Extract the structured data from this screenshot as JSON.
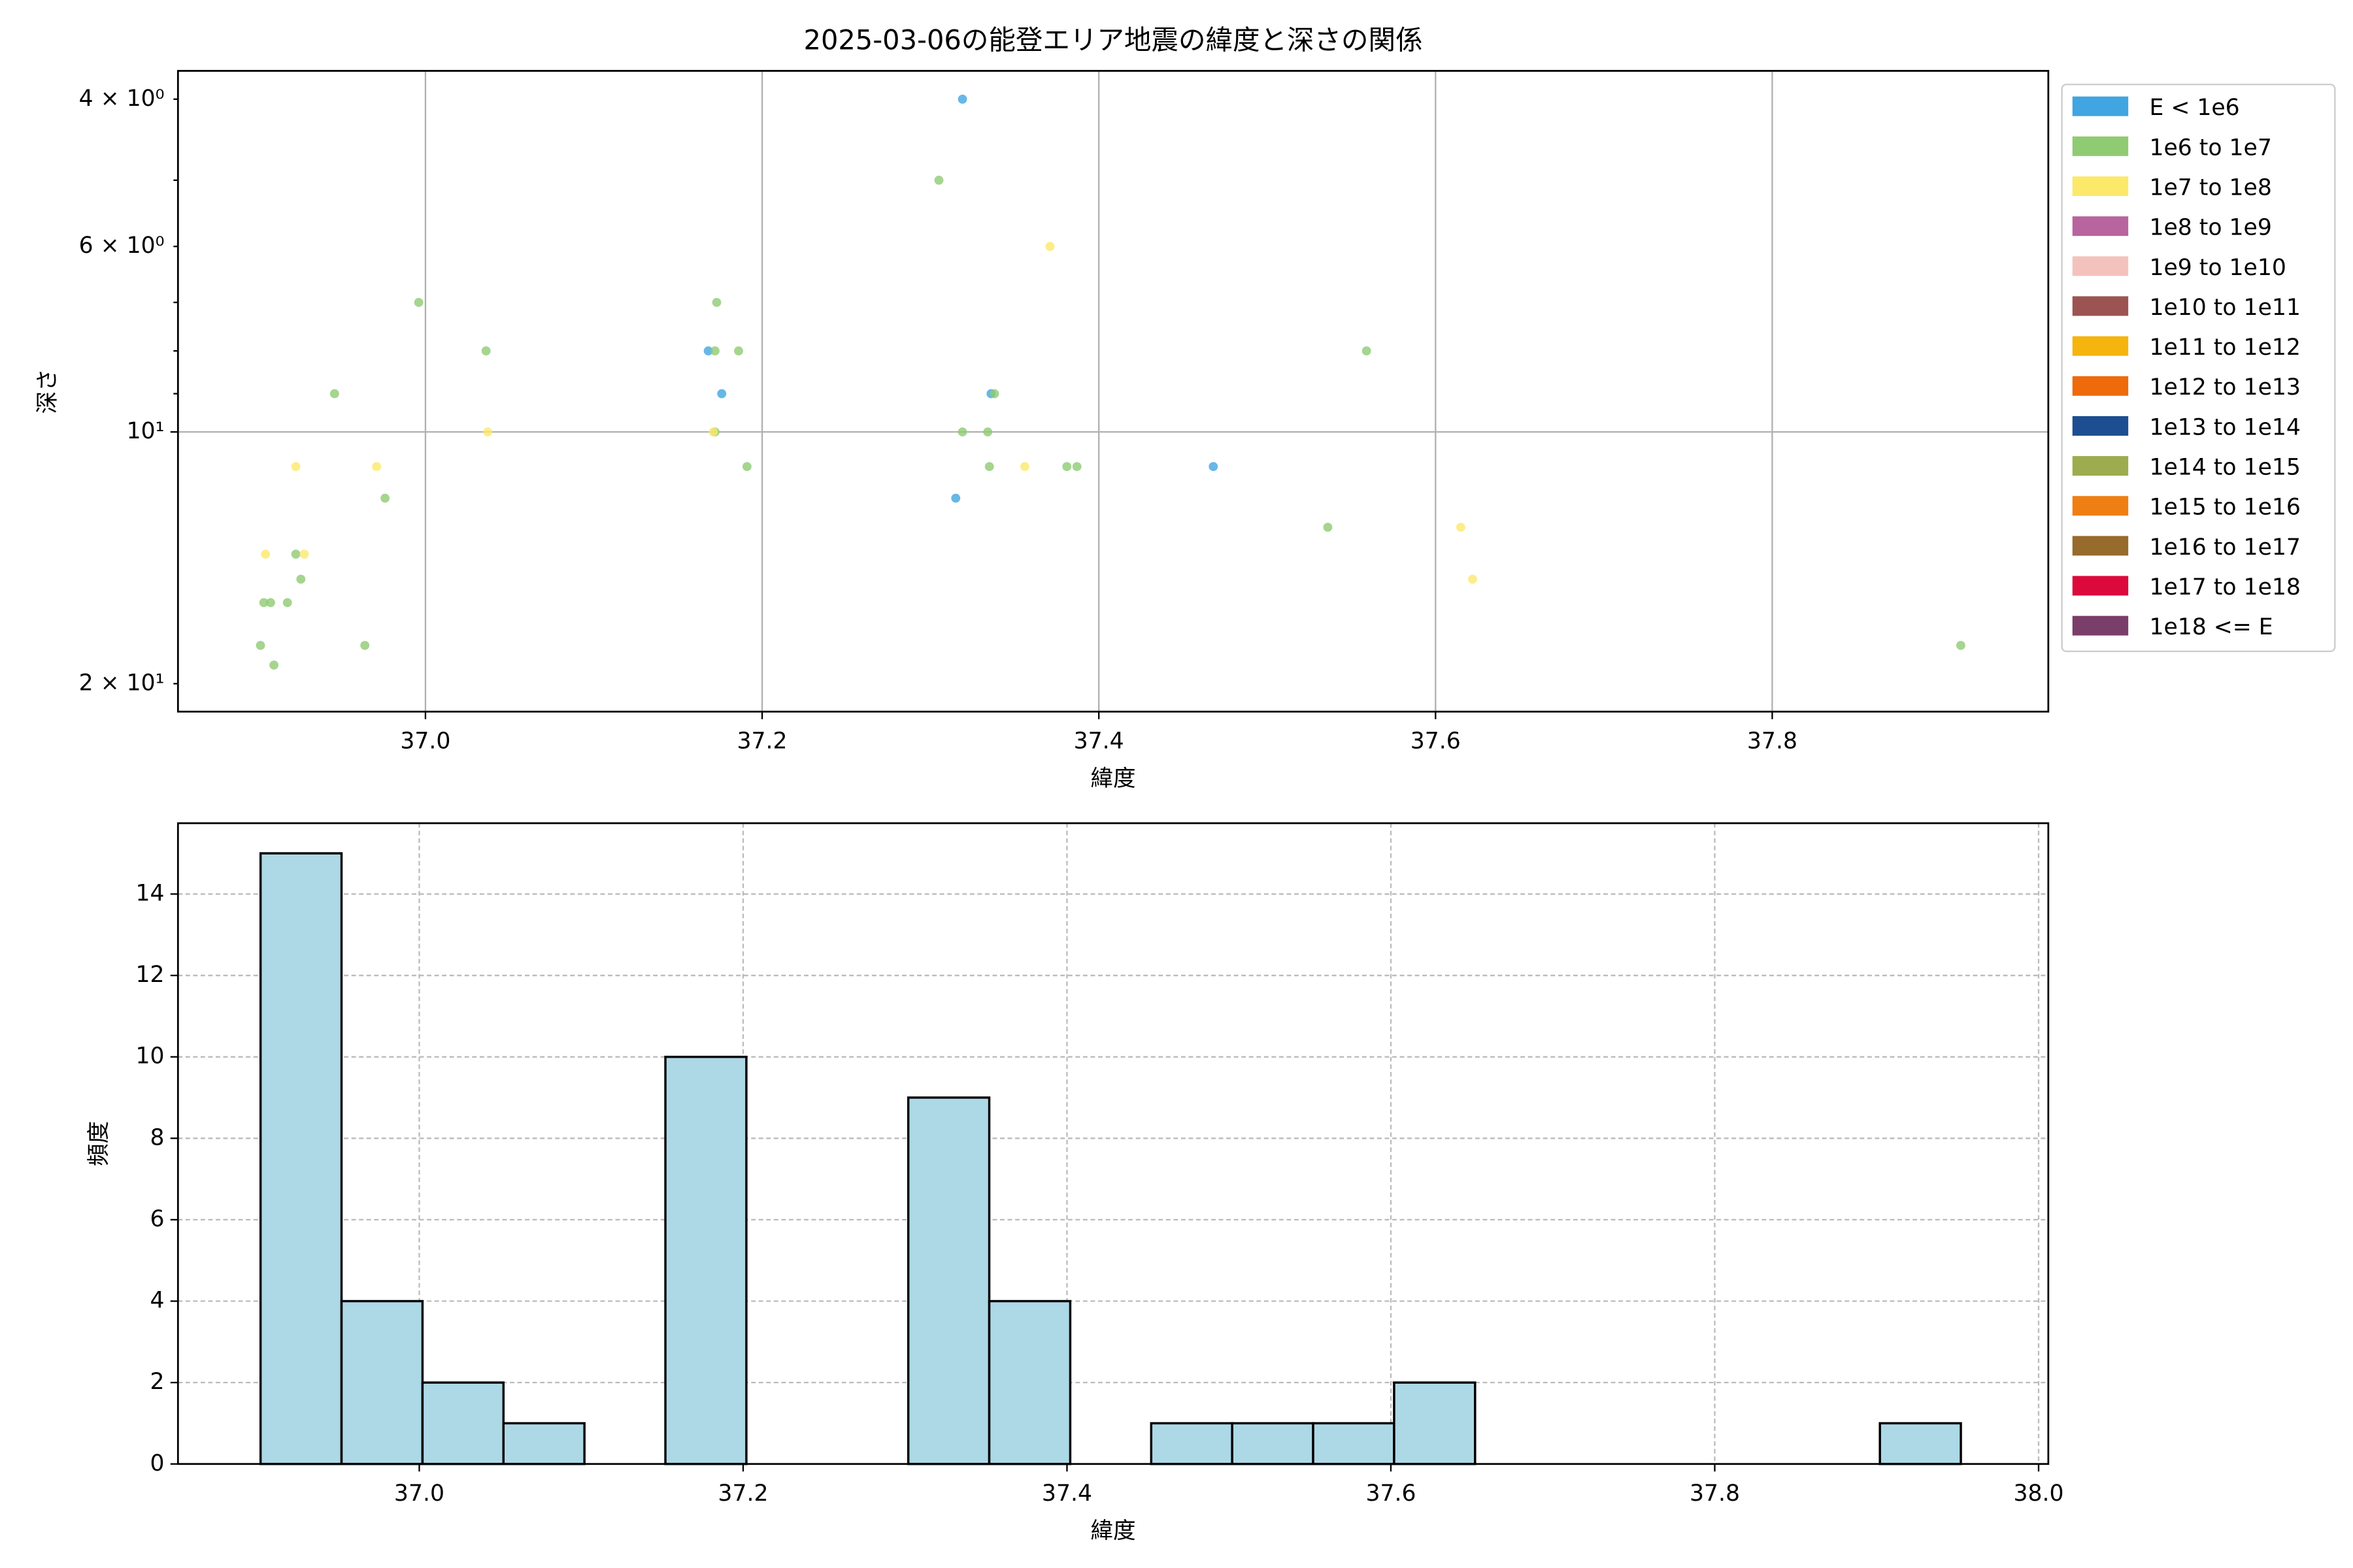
{
  "chart_data": [
    {
      "type": "scatter",
      "title": "2025-03-06の能登エリア地震の緯度と深さの関係",
      "xlabel": "緯度",
      "ylabel": "深さ",
      "xlim": [
        36.853,
        37.964
      ],
      "xticks": [
        {
          "value": 37.0,
          "label": "37.0"
        },
        {
          "value": 37.2,
          "label": "37.2"
        },
        {
          "value": 37.4,
          "label": "37.4"
        },
        {
          "value": 37.6,
          "label": "37.6"
        },
        {
          "value": 37.8,
          "label": "37.8"
        }
      ],
      "ylim": [
        21.6,
        3.7
      ],
      "yscale": "log",
      "yticks": [
        {
          "value": 10,
          "label": "10¹"
        }
      ],
      "yminorticks": [
        {
          "value": 4,
          "label": "4 × 10⁰"
        },
        5,
        {
          "value": 6,
          "label": "6 × 10⁰"
        },
        7,
        8,
        9,
        {
          "value": 20,
          "label": "2 × 10¹"
        }
      ],
      "grid": true,
      "grid_style": "solid",
      "legend": "outside upper right",
      "series": [
        {
          "name": "E < 1e6",
          "color": "#41a5e1",
          "x": [
            37.319,
            37.468,
            37.315,
            37.336,
            37.168,
            37.176
          ],
          "y": [
            4,
            11,
            12,
            9,
            8,
            9
          ]
        },
        {
          "name": "1e6 to 1e7",
          "color": "#8fcb73",
          "x": [
            37.305,
            36.996,
            37.036,
            36.946,
            37.173,
            37.172,
            37.186,
            37.172,
            37.191,
            37.319,
            37.334,
            37.335,
            37.381,
            37.387,
            37.338,
            37.559,
            37.536,
            36.976,
            36.923,
            36.926,
            36.904,
            36.908,
            36.918,
            36.902,
            36.964,
            36.91,
            37.912
          ],
          "y": [
            5,
            7,
            8,
            9,
            7,
            8,
            8,
            10,
            11,
            10,
            10,
            11,
            11,
            11,
            9,
            8,
            13,
            12,
            14,
            15,
            16,
            16,
            16,
            18,
            18,
            19,
            18
          ]
        },
        {
          "name": "1e7 to 1e8",
          "color": "#fce96a",
          "x": [
            37.371,
            36.923,
            36.971,
            37.037,
            37.171,
            37.356,
            37.615,
            37.622,
            36.905,
            36.928
          ],
          "y": [
            6,
            11,
            11,
            10,
            10,
            11,
            13,
            15,
            14,
            14
          ]
        },
        {
          "name": "1e8 to 1e9",
          "color": "#b8649f",
          "x": [],
          "y": []
        },
        {
          "name": "1e9 to 1e10",
          "color": "#f4c2bc",
          "x": [],
          "y": []
        },
        {
          "name": "1e10 to 1e11",
          "color": "#9b5451",
          "x": [],
          "y": []
        },
        {
          "name": "1e11 to 1e12",
          "color": "#f6b40f",
          "x": [],
          "y": []
        },
        {
          "name": "1e12 to 1e13",
          "color": "#ee6a0b",
          "x": [],
          "y": []
        },
        {
          "name": "1e13 to 1e14",
          "color": "#1d4e91",
          "x": [],
          "y": []
        },
        {
          "name": "1e14 to 1e15",
          "color": "#9dac4e",
          "x": [],
          "y": []
        },
        {
          "name": "1e15 to 1e16",
          "color": "#ef7f12",
          "x": [],
          "y": []
        },
        {
          "name": "1e16 to 1e17",
          "color": "#966b2b",
          "x": [],
          "y": []
        },
        {
          "name": "1e17 to 1e18",
          "color": "#dc0a3c",
          "x": [],
          "y": []
        },
        {
          "name": "1e18 <= E",
          "color": "#7a3e6a",
          "x": [],
          "y": []
        }
      ]
    },
    {
      "type": "histogram",
      "xlabel": "緯度",
      "ylabel": "頻度",
      "color": "#add8e6",
      "edgecolor": "#000000",
      "xlim": [
        36.851,
        38.006
      ],
      "xticks": [
        {
          "value": 37.0,
          "label": "37.0"
        },
        {
          "value": 37.2,
          "label": "37.2"
        },
        {
          "value": 37.4,
          "label": "37.4"
        },
        {
          "value": 37.6,
          "label": "37.6"
        },
        {
          "value": 37.8,
          "label": "37.8"
        },
        {
          "value": 38.0,
          "label": "38.0"
        }
      ],
      "ylim": [
        0,
        15.74
      ],
      "yticks": [
        0,
        2,
        4,
        6,
        8,
        10,
        12,
        14
      ],
      "grid": true,
      "grid_style": "dashed",
      "bins": [
        36.902,
        36.952,
        37.002,
        37.052,
        37.102,
        37.152,
        37.202,
        37.252,
        37.302,
        37.352,
        37.402,
        37.452,
        37.502,
        37.552,
        37.602,
        37.652,
        37.702,
        37.752,
        37.802,
        37.852,
        37.902,
        37.952
      ],
      "values": [
        15,
        4,
        2,
        1,
        0,
        10,
        0,
        0,
        9,
        4,
        0,
        1,
        1,
        1,
        2,
        0,
        0,
        0,
        0,
        0,
        1
      ]
    }
  ]
}
